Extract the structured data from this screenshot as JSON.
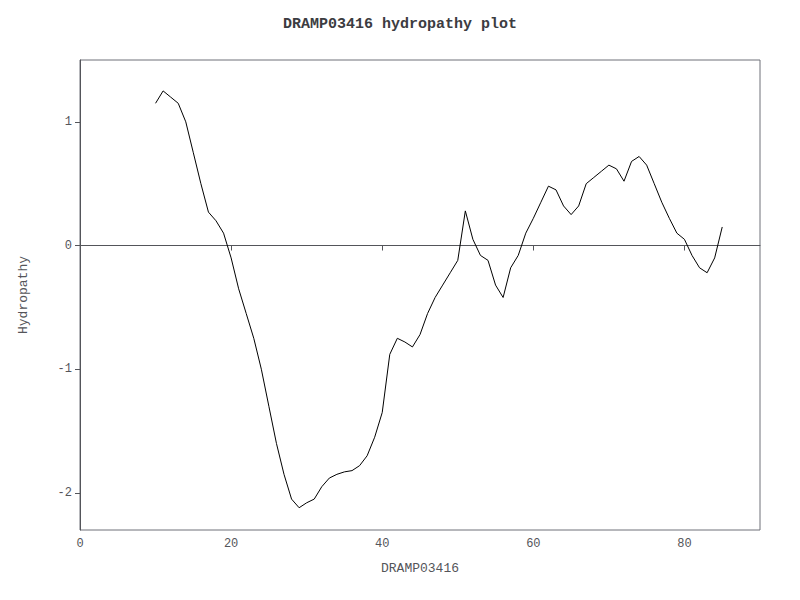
{
  "chart_data": {
    "type": "line",
    "title": "DRAMP03416 hydropathy plot",
    "xlabel": "DRAMP03416",
    "ylabel": "Hydropathy",
    "x": [
      10,
      11,
      12,
      13,
      14,
      15,
      16,
      17,
      18,
      19,
      20,
      21,
      22,
      23,
      24,
      25,
      26,
      27,
      28,
      29,
      30,
      31,
      32,
      33,
      34,
      35,
      36,
      37,
      38,
      39,
      40,
      41,
      42,
      43,
      44,
      45,
      46,
      47,
      48,
      49,
      50,
      51,
      52,
      53,
      54,
      55,
      56,
      57,
      58,
      59,
      60,
      61,
      62,
      63,
      64,
      65,
      66,
      67,
      68,
      69,
      70,
      71,
      72,
      73,
      74,
      75,
      76,
      77,
      78,
      79,
      80,
      81,
      82,
      83,
      84,
      85
    ],
    "values": [
      1.15,
      1.25,
      1.2,
      1.15,
      1.0,
      0.75,
      0.5,
      0.27,
      0.2,
      0.1,
      -0.1,
      -0.35,
      -0.55,
      -0.75,
      -1.0,
      -1.3,
      -1.6,
      -1.85,
      -2.05,
      -2.12,
      -2.08,
      -2.05,
      -1.95,
      -1.88,
      -1.85,
      -1.83,
      -1.82,
      -1.78,
      -1.7,
      -1.55,
      -1.35,
      -0.88,
      -0.75,
      -0.78,
      -0.82,
      -0.72,
      -0.55,
      -0.42,
      -0.32,
      -0.22,
      -0.12,
      0.28,
      0.05,
      -0.08,
      -0.12,
      -0.32,
      -0.42,
      -0.18,
      -0.08,
      0.1,
      0.22,
      0.35,
      0.48,
      0.45,
      0.32,
      0.25,
      0.32,
      0.5,
      0.55,
      0.6,
      0.65,
      0.62,
      0.52,
      0.68,
      0.72,
      0.65,
      0.5,
      0.35,
      0.22,
      0.1,
      0.05,
      -0.08,
      -0.18,
      -0.22,
      -0.1,
      0.15
    ],
    "color": "#000000",
    "xlim": [
      0,
      90
    ],
    "ylim": [
      -2.3,
      1.5
    ],
    "xticks": [
      0,
      20,
      40,
      60,
      80
    ],
    "yticks": [
      -2,
      -1,
      0,
      1
    ],
    "grid": false
  }
}
